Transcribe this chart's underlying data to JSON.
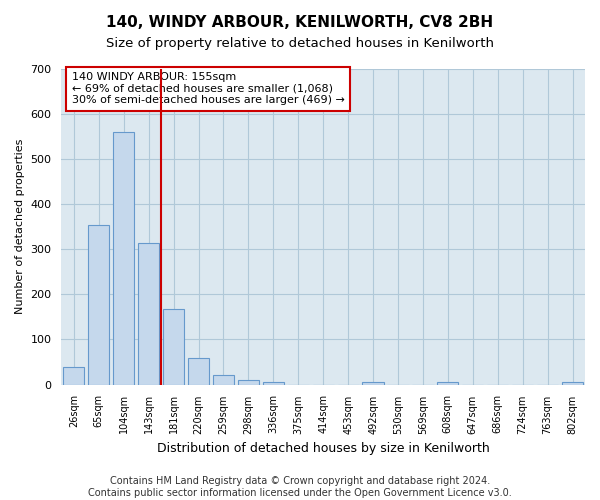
{
  "title": "140, WINDY ARBOUR, KENILWORTH, CV8 2BH",
  "subtitle": "Size of property relative to detached houses in Kenilworth",
  "xlabel": "Distribution of detached houses by size in Kenilworth",
  "ylabel": "Number of detached properties",
  "bar_labels": [
    "26sqm",
    "65sqm",
    "104sqm",
    "143sqm",
    "181sqm",
    "220sqm",
    "259sqm",
    "298sqm",
    "336sqm",
    "375sqm",
    "414sqm",
    "453sqm",
    "492sqm",
    "530sqm",
    "569sqm",
    "608sqm",
    "647sqm",
    "686sqm",
    "724sqm",
    "763sqm",
    "802sqm"
  ],
  "bar_values": [
    40,
    355,
    560,
    315,
    168,
    60,
    22,
    10,
    5,
    0,
    0,
    0,
    5,
    0,
    0,
    5,
    0,
    0,
    0,
    0,
    5
  ],
  "bar_color": "#c5d8ec",
  "bar_edge_color": "#6699cc",
  "vline_x": 3.5,
  "vline_color": "#cc0000",
  "annotation_text": "140 WINDY ARBOUR: 155sqm\n← 69% of detached houses are smaller (1,068)\n30% of semi-detached houses are larger (469) →",
  "annotation_box_color": "#ffffff",
  "annotation_border_color": "#cc0000",
  "ylim": [
    0,
    700
  ],
  "yticks": [
    0,
    100,
    200,
    300,
    400,
    500,
    600,
    700
  ],
  "fig_bg_color": "#ffffff",
  "plot_bg_color": "#dce8f0",
  "grid_color": "#b0c8d8",
  "footer_text": "Contains HM Land Registry data © Crown copyright and database right 2024.\nContains public sector information licensed under the Open Government Licence v3.0.",
  "title_fontsize": 11,
  "subtitle_fontsize": 9.5,
  "annotation_fontsize": 8,
  "footer_fontsize": 7,
  "ylabel_fontsize": 8,
  "xlabel_fontsize": 9
}
